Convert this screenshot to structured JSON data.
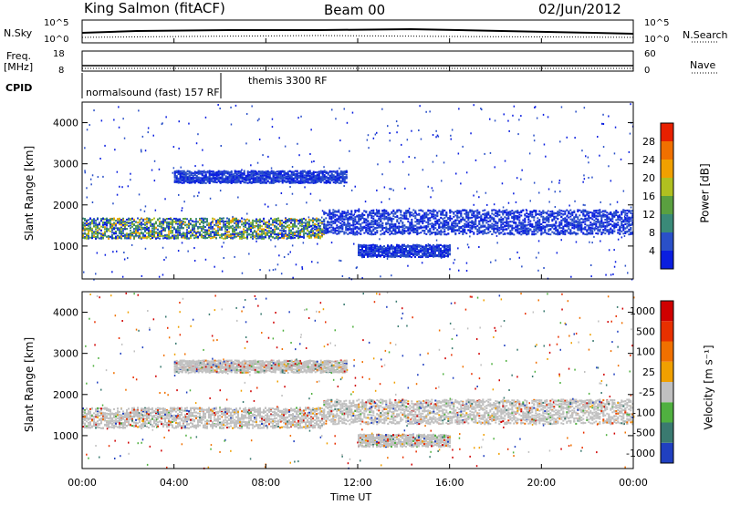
{
  "header": {
    "station": "King Salmon (fitACF)",
    "beam": "Beam 00",
    "date": "02/Jun/2012"
  },
  "panels": {
    "nsky": {
      "label": "N.Sky",
      "top_tick": "10^5",
      "bottom_tick": "10^0",
      "right_label": "N.Search",
      "right_top_tick": "10^5",
      "right_bottom_tick": "10^0"
    },
    "freq": {
      "label_line1": "Freq.",
      "label_line2": "[MHz]",
      "top_tick": "18",
      "bottom_tick": "8",
      "right_label": "Nave",
      "right_top_tick": "60",
      "right_bottom_tick": "0"
    },
    "cpid": {
      "label": "CPID",
      "mode1": "normalsound (fast) 157 RF",
      "mode2": "themis 3300 RF"
    }
  },
  "chart_data": [
    {
      "type": "heatmap",
      "title": "",
      "ylabel": "Slant Range [km]",
      "xlabel": "",
      "ylim": [
        200,
        4500
      ],
      "yticks": [
        "1000",
        "2000",
        "3000",
        "4000"
      ],
      "colorbar": {
        "label": "Power [dB]",
        "ticks": [
          "4",
          "8",
          "12",
          "16",
          "20",
          "24",
          "28"
        ],
        "colors": [
          "#0a1ee0",
          "#2a50c8",
          "#3a8a78",
          "#5aa040",
          "#b0c020",
          "#f0a000",
          "#f07000",
          "#e82000"
        ]
      },
      "bands": [
        {
          "x_start": 0.0,
          "x_end": 10.5,
          "range_center": 1450,
          "width": 250,
          "level": "high"
        },
        {
          "x_start": 10.5,
          "x_end": 24.0,
          "range_center": 1600,
          "width": 300,
          "level": "low"
        },
        {
          "x_start": 4.0,
          "x_end": 11.5,
          "range_center": 2700,
          "width": 150,
          "level": "low"
        },
        {
          "x_start": 12.0,
          "x_end": 16.0,
          "range_center": 900,
          "width": 150,
          "level": "low"
        }
      ]
    },
    {
      "type": "heatmap",
      "title": "",
      "ylabel": "Slant Range [km]",
      "xlabel": "Time UT",
      "ylim": [
        200,
        4500
      ],
      "yticks": [
        "1000",
        "2000",
        "3000",
        "4000"
      ],
      "xticks": [
        "00:00",
        "04:00",
        "08:00",
        "12:00",
        "16:00",
        "20:00",
        "00:00"
      ],
      "colorbar": {
        "label": "Velocity [m s⁻¹]",
        "ticks": [
          "1000",
          "500",
          "100",
          "25",
          "-25",
          "-100",
          "-500",
          "-1000"
        ],
        "colors": [
          "#2040c0",
          "#3a7a70",
          "#50b040",
          "#c0c0c0",
          "#f0a000",
          "#f07000",
          "#e83000",
          "#d00000"
        ]
      }
    }
  ]
}
